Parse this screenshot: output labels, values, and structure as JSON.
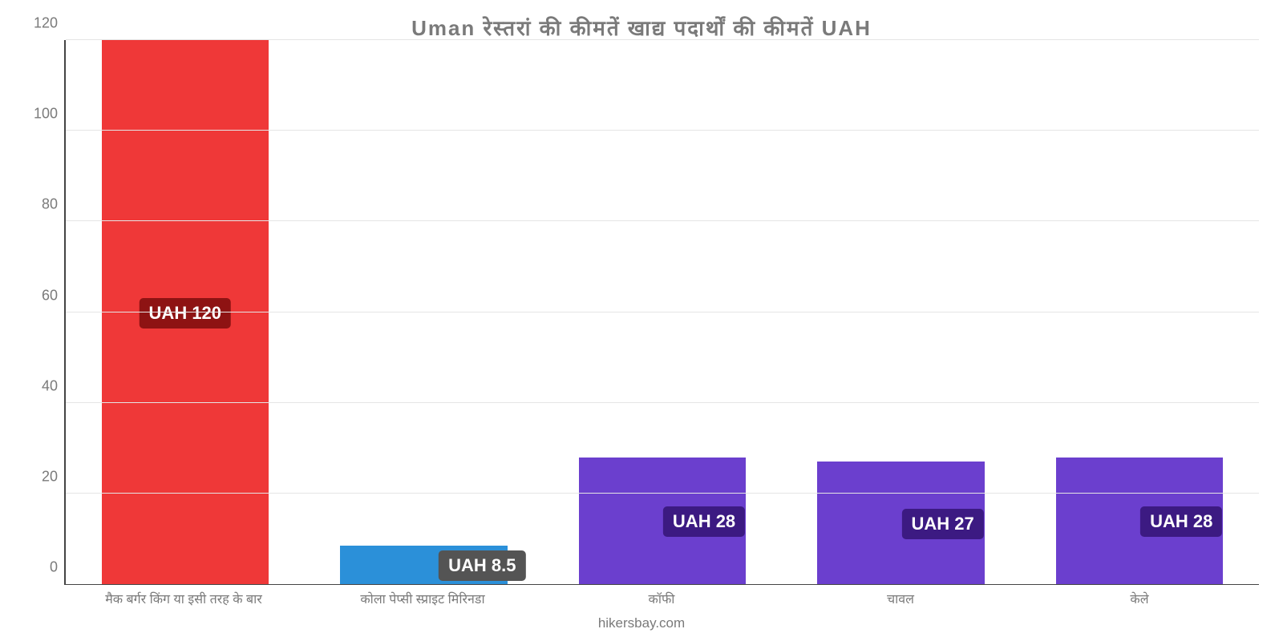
{
  "chart": {
    "type": "bar",
    "title": "Uman रेस्तरां की कीमतें खाद्य पदार्थों की कीमतें UAH",
    "title_fontsize": 26,
    "title_color": "#7a7a7a",
    "background_color": "#ffffff",
    "axis_color": "#444444",
    "grid_color": "#e5e5e5",
    "ylim": [
      0,
      120
    ],
    "ytick_step": 20,
    "ytick_fontsize": 18,
    "ytick_color": "#7a7a7a",
    "xlabel_fontsize": 16,
    "xlabel_color": "#7a7a7a",
    "bar_width": 0.7,
    "value_label_fontsize": 22,
    "value_label_text_color": "#ffffff",
    "value_label_radius": 5,
    "categories": [
      "मैक बर्गर किंग या इसी तरह के बार",
      "कोला पेप्सी स्प्राइट मिरिनडा",
      "कॉफी",
      "चावल",
      "केले"
    ],
    "values": [
      120,
      8.5,
      28,
      27,
      28
    ],
    "value_labels": [
      "UAH 120",
      "UAH 8.5",
      "UAH 28",
      "UAH 27",
      "UAH 28"
    ],
    "bar_colors": [
      "#ef3838",
      "#2b90d9",
      "#6b3fce",
      "#6b3fce",
      "#6b3fce"
    ],
    "badge_colors": [
      "#8e1313",
      "#545454",
      "#3c1a82",
      "#3c1a82",
      "#3c1a82"
    ],
    "badge_pos_pct": [
      50,
      85,
      75,
      75,
      75
    ],
    "footer": "hikersbay.com",
    "footer_fontsize": 17,
    "footer_color": "#7a7a7a"
  }
}
